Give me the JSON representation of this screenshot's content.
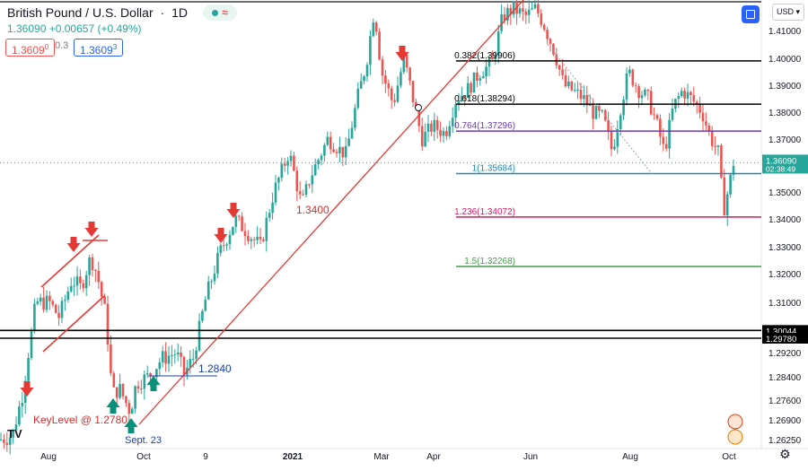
{
  "header": {
    "symbol": "British Pound / U.S. Dollar",
    "timeframe": "1D",
    "last": "1.36090",
    "change": "+0.00657 (+0.49%)",
    "sell_price": "1.3609",
    "sell_price_sup": "0",
    "spread": "0.3",
    "buy_price": "1.3609",
    "buy_price_sup": "3",
    "currency": "USD",
    "logo": "TV"
  },
  "colors": {
    "up": "#26a69a",
    "down": "#ef5350",
    "trend": "#e53935",
    "label_red": "#d32f2f",
    "label_blue": "#1a3fa8",
    "arrow_red": "#e53935",
    "arrow_green": "#0a8f7a"
  },
  "chart_data": {
    "type": "candlestick",
    "x_labels": [
      "Aug",
      "Oct",
      "9",
      "2021",
      "Mar",
      "Apr",
      "Jun",
      "Aug",
      "Oct"
    ],
    "y_ticks": [
      "1.41000",
      "1.40000",
      "1.39000",
      "1.38000",
      "1.37000",
      "1.36000",
      "1.35000",
      "1.34000",
      "1.33000",
      "1.32000",
      "1.31000",
      "1.29200",
      "1.28400",
      "1.27600",
      "1.26900",
      "1.26250"
    ],
    "axis_labels": [
      {
        "text": "1.36090",
        "sub": "02:38:49",
        "value": 1.3609,
        "bg": "#26a69a"
      },
      {
        "text": "1.30044",
        "value": 1.30044,
        "bg": "#000000"
      },
      {
        "text": "1.29780",
        "value": 1.2978,
        "bg": "#000000"
      }
    ],
    "fib_levels": [
      {
        "label": "0.382(1.39906)",
        "value": 1.39906,
        "color": "#000000"
      },
      {
        "label": "0.618(1.38294)",
        "value": 1.38294,
        "color": "#000000"
      },
      {
        "label": "0.764(1.37296)",
        "value": 1.37296,
        "color": "#6a3ab2"
      },
      {
        "label": "1(1.35684)",
        "value": 1.35684,
        "color": "#1e88b4"
      },
      {
        "label": "1.236(1.34072)",
        "value": 1.34072,
        "color": "#d81b60"
      },
      {
        "label": "1.5(1.32268)",
        "value": 1.32268,
        "color": "#43a047"
      }
    ],
    "current_price": 1.3609,
    "annotations": [
      {
        "text": "1.3400"
      },
      {
        "text": "1.2840"
      },
      {
        "text": "KeyLevel @ 1.2780"
      },
      {
        "text": "Sept. 23"
      }
    ],
    "price_path": [
      [
        0,
        1.2625
      ],
      [
        14,
        1.264
      ],
      [
        25,
        1.278
      ],
      [
        40,
        1.31
      ],
      [
        55,
        1.31
      ],
      [
        66,
        1.305
      ],
      [
        80,
        1.318
      ],
      [
        90,
        1.315
      ],
      [
        101,
        1.326
      ],
      [
        108,
        1.32
      ],
      [
        118,
        1.305
      ],
      [
        125,
        1.278
      ],
      [
        133,
        1.28
      ],
      [
        145,
        1.272
      ],
      [
        152,
        1.282
      ],
      [
        165,
        1.284
      ],
      [
        180,
        1.29
      ],
      [
        196,
        1.292
      ],
      [
        205,
        1.285
      ],
      [
        215,
        1.29
      ],
      [
        228,
        1.31
      ],
      [
        245,
        1.328
      ],
      [
        262,
        1.34
      ],
      [
        290,
        1.33
      ],
      [
        305,
        1.35
      ],
      [
        322,
        1.365
      ],
      [
        336,
        1.345
      ],
      [
        345,
        1.355
      ],
      [
        365,
        1.37
      ],
      [
        385,
        1.364
      ],
      [
        398,
        1.385
      ],
      [
        408,
        1.398
      ],
      [
        417,
        1.418
      ],
      [
        425,
        1.395
      ],
      [
        438,
        1.383
      ],
      [
        450,
        1.4
      ],
      [
        460,
        1.385
      ],
      [
        470,
        1.37
      ],
      [
        482,
        1.375
      ],
      [
        496,
        1.372
      ],
      [
        508,
        1.385
      ],
      [
        520,
        1.388
      ],
      [
        535,
        1.395
      ],
      [
        548,
        1.398
      ],
      [
        560,
        1.415
      ],
      [
        572,
        1.418
      ],
      [
        585,
        1.415
      ],
      [
        597,
        1.418
      ],
      [
        606,
        1.412
      ],
      [
        618,
        1.402
      ],
      [
        628,
        1.39
      ],
      [
        638,
        1.388
      ],
      [
        650,
        1.385
      ],
      [
        660,
        1.38
      ],
      [
        672,
        1.378
      ],
      [
        682,
        1.365
      ],
      [
        690,
        1.38
      ],
      [
        700,
        1.395
      ],
      [
        712,
        1.388
      ],
      [
        722,
        1.385
      ],
      [
        732,
        1.375
      ],
      [
        740,
        1.365
      ],
      [
        750,
        1.382
      ],
      [
        760,
        1.388
      ],
      [
        770,
        1.385
      ],
      [
        782,
        1.38
      ],
      [
        792,
        1.37
      ],
      [
        800,
        1.365
      ],
      [
        806,
        1.343
      ],
      [
        812,
        1.352
      ],
      [
        817,
        1.3609
      ]
    ]
  }
}
